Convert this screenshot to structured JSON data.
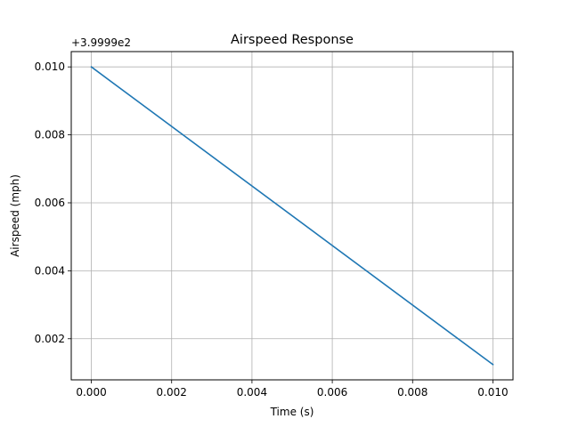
{
  "chart_data": {
    "type": "line",
    "title": "Airspeed Response",
    "xlabel": "Time (s)",
    "ylabel": "Airspeed (mph)",
    "y_offset_label": "+3.9999e2",
    "xlim": [
      -0.0005,
      0.0105
    ],
    "ylim": [
      0.00079,
      0.01045
    ],
    "grid": true,
    "x_ticks": [
      "0.000",
      "0.002",
      "0.004",
      "0.006",
      "0.008",
      "0.010"
    ],
    "x_tick_values": [
      0,
      0.002,
      0.004,
      0.006,
      0.008,
      0.01
    ],
    "y_ticks": [
      "0.002",
      "0.004",
      "0.006",
      "0.008",
      "0.010"
    ],
    "y_tick_values": [
      0.002,
      0.004,
      0.006,
      0.008,
      0.01
    ],
    "series": [
      {
        "color": "#1f77b4",
        "x": [
          0,
          0.01
        ],
        "y": [
          0.01,
          0.00124
        ]
      }
    ]
  }
}
